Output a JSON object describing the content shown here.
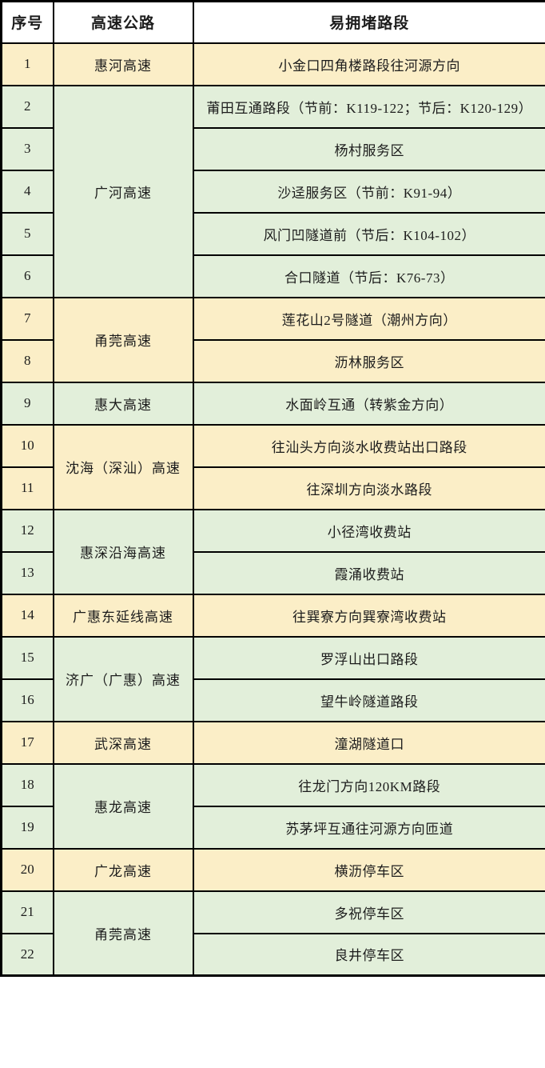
{
  "colors": {
    "group_yellow": "#FBEEC7",
    "group_green": "#E2EFDA",
    "header_bg": "#FFFFFF",
    "grid_border": "#000000",
    "text": "#1C1C1C"
  },
  "table": {
    "headers": [
      "序号",
      "高速公路",
      "易拥堵路段"
    ],
    "groups": [
      {
        "highway": "惠河高速",
        "tone": "group_yellow",
        "rows": [
          {
            "no": "1",
            "section": "小金口四角楼路段往河源方向"
          }
        ]
      },
      {
        "highway": "广河高速",
        "tone": "group_green",
        "rows": [
          {
            "no": "2",
            "section": "莆田互通路段（节前：K119-122；节后：K120-129）"
          },
          {
            "no": "3",
            "section": "杨村服务区"
          },
          {
            "no": "4",
            "section": "沙迳服务区（节前：K91-94）"
          },
          {
            "no": "5",
            "section": "风门凹隧道前（节后：K104-102）"
          },
          {
            "no": "6",
            "section": "合口隧道（节后：K76-73）"
          }
        ]
      },
      {
        "highway": "甬莞高速",
        "tone": "group_yellow",
        "rows": [
          {
            "no": "7",
            "section": "莲花山2号隧道（潮州方向）"
          },
          {
            "no": "8",
            "section": "沥林服务区"
          }
        ]
      },
      {
        "highway": "惠大高速",
        "tone": "group_green",
        "rows": [
          {
            "no": "9",
            "section": "水面岭互通（转紫金方向）"
          }
        ]
      },
      {
        "highway": "沈海（深汕）高速",
        "tone": "group_yellow",
        "rows": [
          {
            "no": "10",
            "section": "往汕头方向淡水收费站出口路段"
          },
          {
            "no": "11",
            "section": "往深圳方向淡水路段"
          }
        ]
      },
      {
        "highway": "惠深沿海高速",
        "tone": "group_green",
        "rows": [
          {
            "no": "12",
            "section": "小径湾收费站"
          },
          {
            "no": "13",
            "section": "霞涌收费站"
          }
        ]
      },
      {
        "highway": "广惠东延线高速",
        "tone": "group_yellow",
        "rows": [
          {
            "no": "14",
            "section": "往巽寮方向巽寮湾收费站"
          }
        ]
      },
      {
        "highway": "济广（广惠）高速",
        "tone": "group_green",
        "rows": [
          {
            "no": "15",
            "section": "罗浮山出口路段"
          },
          {
            "no": "16",
            "section": "望牛岭隧道路段"
          }
        ]
      },
      {
        "highway": "武深高速",
        "tone": "group_yellow",
        "rows": [
          {
            "no": "17",
            "section": "潼湖隧道口"
          }
        ]
      },
      {
        "highway": "惠龙高速",
        "tone": "group_green",
        "rows": [
          {
            "no": "18",
            "section": "往龙门方向120KM路段"
          },
          {
            "no": "19",
            "section": "苏茅坪互通往河源方向匝道"
          }
        ]
      },
      {
        "highway": "广龙高速",
        "tone": "group_yellow",
        "rows": [
          {
            "no": "20",
            "section": "横沥停车区"
          }
        ]
      },
      {
        "highway": "甬莞高速",
        "tone": "group_green",
        "rows": [
          {
            "no": "21",
            "section": "多祝停车区"
          },
          {
            "no": "22",
            "section": "良井停车区"
          }
        ]
      }
    ]
  }
}
